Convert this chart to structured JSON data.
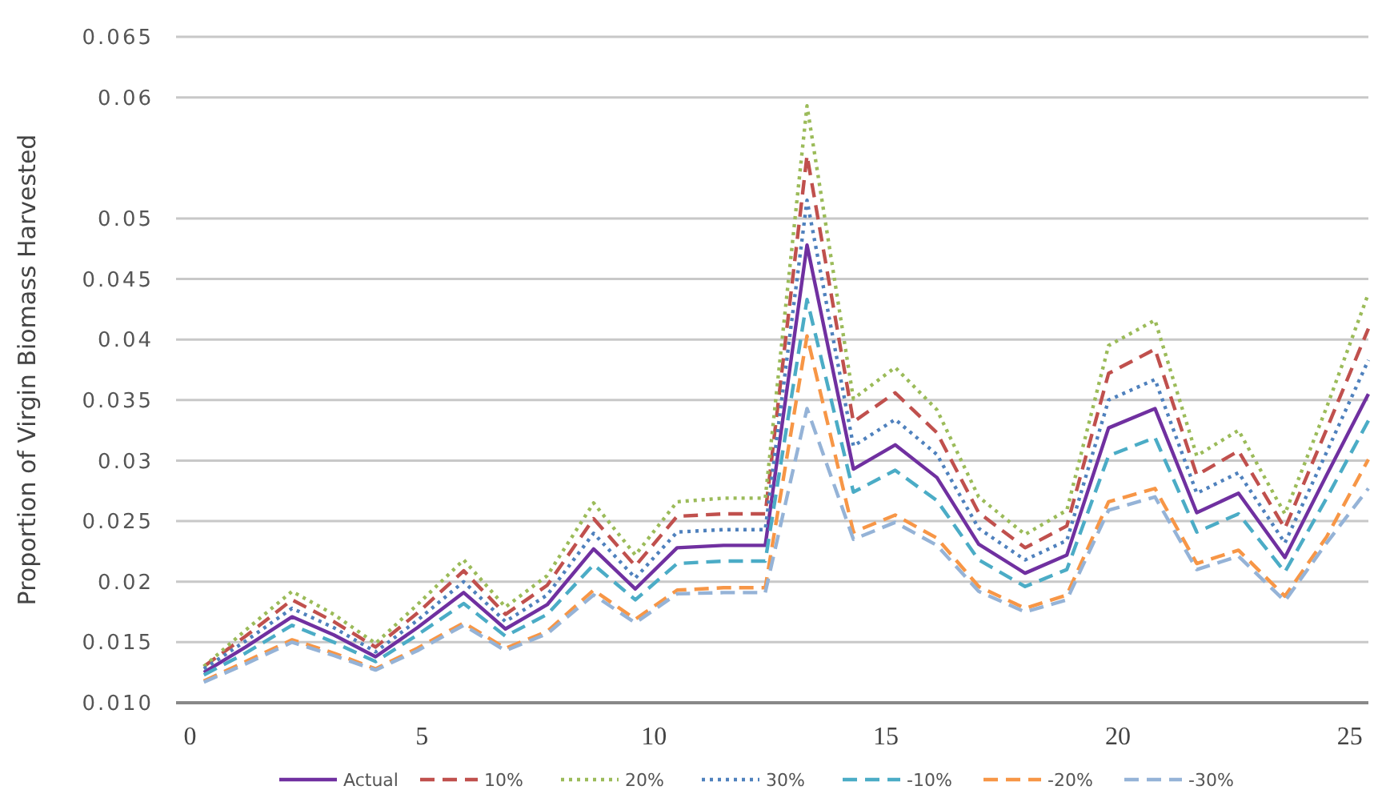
{
  "chart_data": {
    "type": "line",
    "ylabel": "Proportion  of Virgin Biomass Harvested",
    "x": [
      0.3,
      1.2,
      2.2,
      3.1,
      4.0,
      4.9,
      5.9,
      6.8,
      7.7,
      8.7,
      9.6,
      10.5,
      11.5,
      12.4,
      13.3,
      14.3,
      15.2,
      16.1,
      17.0,
      18.0,
      18.9,
      19.8,
      20.8,
      21.7,
      22.6,
      23.6,
      24.5,
      25.4
    ],
    "xlim": [
      -0.3,
      25.4
    ],
    "xticks": [
      0,
      5,
      10,
      15,
      20,
      25
    ],
    "ylim": [
      0.01,
      0.065
    ],
    "yticks": [
      {
        "value": 0.01,
        "label": "0.010"
      },
      0.015,
      0.02,
      0.025,
      0.03,
      0.035,
      0.04,
      0.045,
      0.05,
      0.06,
      0.065
    ],
    "grid": "y",
    "legend": "bottom",
    "series": [
      {
        "name": "Actual",
        "color": "#7030a0",
        "line_style": "solid",
        "values": [
          0.0125,
          0.0146,
          0.0171,
          0.0156,
          0.0138,
          0.0162,
          0.0191,
          0.0161,
          0.0181,
          0.0227,
          0.0194,
          0.0228,
          0.023,
          0.023,
          0.0478,
          0.0293,
          0.0313,
          0.0286,
          0.0231,
          0.0207,
          0.0222,
          0.0327,
          0.0343,
          0.0257,
          0.0273,
          0.022,
          0.0288,
          0.0355
        ]
      },
      {
        "name": "10%",
        "color": "#c0504d",
        "line_style": "dashed",
        "values": [
          0.013,
          0.0155,
          0.0185,
          0.0167,
          0.0146,
          0.0174,
          0.0209,
          0.0173,
          0.0197,
          0.0252,
          0.0213,
          0.0254,
          0.0256,
          0.0256,
          0.0552,
          0.0332,
          0.0356,
          0.0323,
          0.0257,
          0.0228,
          0.0246,
          0.0372,
          0.0392,
          0.0288,
          0.0308,
          0.0244,
          0.0326,
          0.0409
        ]
      },
      {
        "name": "20%",
        "color": "#9bbb59",
        "line_style": "dotted",
        "values": [
          0.013,
          0.016,
          0.0192,
          0.0173,
          0.0149,
          0.0181,
          0.0218,
          0.0179,
          0.0205,
          0.0265,
          0.0222,
          0.0266,
          0.0269,
          0.0269,
          0.0593,
          0.0351,
          0.0377,
          0.0342,
          0.027,
          0.0239,
          0.0259,
          0.0395,
          0.0416,
          0.0304,
          0.0325,
          0.0256,
          0.0344,
          0.0438
        ]
      },
      {
        "name": "30%",
        "color": "#4f81bd",
        "line_style": "dotted",
        "values": [
          0.0128,
          0.0151,
          0.0178,
          0.0162,
          0.0142,
          0.0168,
          0.02,
          0.0167,
          0.0189,
          0.024,
          0.0203,
          0.0241,
          0.0243,
          0.0243,
          0.0515,
          0.0312,
          0.0334,
          0.0305,
          0.0244,
          0.0218,
          0.0234,
          0.035,
          0.0367,
          0.0273,
          0.029,
          0.0232,
          0.0307,
          0.0383
        ]
      },
      {
        "name": "-10%",
        "color": "#4bacc6",
        "line_style": "dashed",
        "values": [
          0.0123,
          0.0141,
          0.0164,
          0.015,
          0.0134,
          0.0156,
          0.0182,
          0.0155,
          0.0173,
          0.0214,
          0.0185,
          0.0215,
          0.0217,
          0.0217,
          0.0433,
          0.0274,
          0.0292,
          0.0267,
          0.0218,
          0.0196,
          0.021,
          0.0304,
          0.0319,
          0.0241,
          0.0256,
          0.0208,
          0.0269,
          0.0333
        ]
      },
      {
        "name": "-20%",
        "color": "#f79646",
        "line_style": "dashed",
        "values": [
          0.0118,
          0.0134,
          0.0152,
          0.0141,
          0.0128,
          0.0145,
          0.0166,
          0.0145,
          0.0159,
          0.0193,
          0.0169,
          0.0193,
          0.0195,
          0.0195,
          0.0403,
          0.0241,
          0.0255,
          0.0236,
          0.0196,
          0.0178,
          0.0189,
          0.0266,
          0.0277,
          0.0215,
          0.0226,
          0.0188,
          0.0237,
          0.0301
        ]
      },
      {
        "name": "-30%",
        "color": "#95b3d7",
        "line_style": "dashed",
        "values": [
          0.0117,
          0.0132,
          0.015,
          0.0139,
          0.0127,
          0.0143,
          0.0164,
          0.0143,
          0.0157,
          0.0189,
          0.0166,
          0.019,
          0.0191,
          0.0191,
          0.0343,
          0.0235,
          0.0249,
          0.023,
          0.0192,
          0.0175,
          0.0185,
          0.0259,
          0.027,
          0.021,
          0.0221,
          0.0184,
          0.0232,
          0.0277
        ]
      }
    ]
  }
}
